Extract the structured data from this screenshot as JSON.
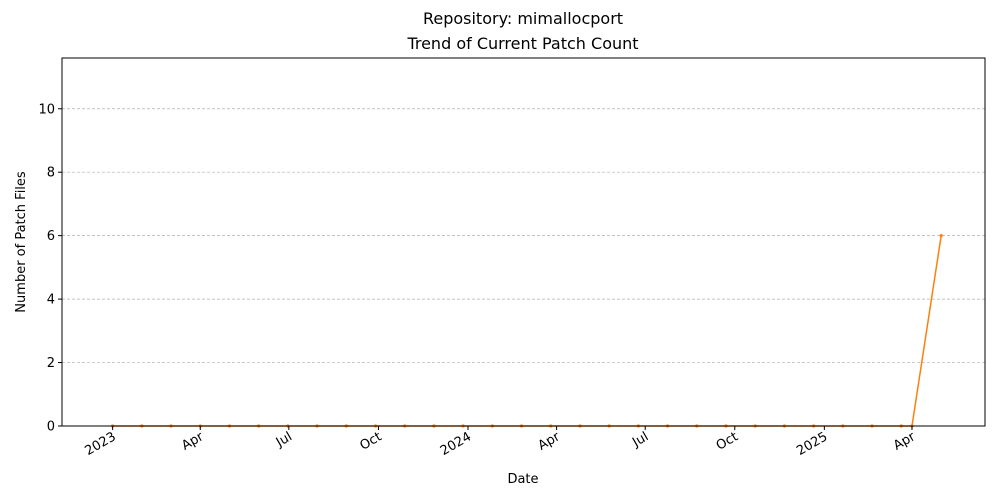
{
  "chart_data": {
    "type": "line",
    "title": "Repository: mimallocport",
    "subtitle": "Trend of Current Patch Count",
    "xlabel": "Date",
    "ylabel": "Number of Patch Files",
    "x_range": [
      "2022-11-10",
      "2025-06-15"
    ],
    "ylim": [
      0,
      11.6
    ],
    "grid": "horizontal-dashed",
    "x_ticks": [
      {
        "date": "2023-01-01",
        "label": "2023"
      },
      {
        "date": "2023-04-01",
        "label": "Apr"
      },
      {
        "date": "2023-07-01",
        "label": "Jul"
      },
      {
        "date": "2023-10-01",
        "label": "Oct"
      },
      {
        "date": "2024-01-01",
        "label": "2024"
      },
      {
        "date": "2024-04-01",
        "label": "Apr"
      },
      {
        "date": "2024-07-01",
        "label": "Jul"
      },
      {
        "date": "2024-10-01",
        "label": "Oct"
      },
      {
        "date": "2025-01-01",
        "label": "2025"
      },
      {
        "date": "2025-04-01",
        "label": "Apr"
      }
    ],
    "y_ticks": [
      {
        "value": 0,
        "label": "0"
      },
      {
        "value": 2,
        "label": "2"
      },
      {
        "value": 4,
        "label": "4"
      },
      {
        "value": 6,
        "label": "6"
      },
      {
        "value": 8,
        "label": "8"
      },
      {
        "value": 10,
        "label": "10"
      }
    ],
    "series": [
      {
        "color": "#ff7f0e",
        "points": [
          [
            "2023-01-01",
            0
          ],
          [
            "2023-01-31",
            0
          ],
          [
            "2023-03-02",
            0
          ],
          [
            "2023-04-01",
            0
          ],
          [
            "2023-05-01",
            0
          ],
          [
            "2023-05-31",
            0
          ],
          [
            "2023-06-30",
            0
          ],
          [
            "2023-07-30",
            0
          ],
          [
            "2023-08-29",
            0
          ],
          [
            "2023-09-28",
            0
          ],
          [
            "2023-10-28",
            0
          ],
          [
            "2023-11-27",
            0
          ],
          [
            "2023-12-27",
            0
          ],
          [
            "2024-01-26",
            0
          ],
          [
            "2024-02-25",
            0
          ],
          [
            "2024-03-26",
            0
          ],
          [
            "2024-04-25",
            0
          ],
          [
            "2024-05-25",
            0
          ],
          [
            "2024-06-24",
            0
          ],
          [
            "2024-07-24",
            0
          ],
          [
            "2024-08-23",
            0
          ],
          [
            "2024-09-22",
            0
          ],
          [
            "2024-10-22",
            0
          ],
          [
            "2024-11-21",
            0
          ],
          [
            "2024-12-21",
            0
          ],
          [
            "2025-01-20",
            0
          ],
          [
            "2025-02-19",
            0
          ],
          [
            "2025-03-21",
            0
          ],
          [
            "2025-04-01",
            0
          ],
          [
            "2025-05-01",
            6
          ]
        ]
      }
    ]
  }
}
